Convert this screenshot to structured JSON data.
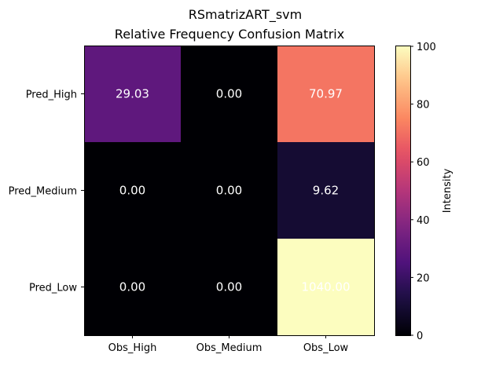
{
  "chart_data": {
    "type": "heatmap",
    "title": "RSmatrizART_svm",
    "subtitle": "Relative Frequency Confusion Matrix",
    "x_categories": [
      "Obs_High",
      "Obs_Medium",
      "Obs_Low"
    ],
    "y_categories": [
      "Pred_High",
      "Pred_Medium",
      "Pred_Low"
    ],
    "values": [
      [
        29.03,
        0.0,
        70.97
      ],
      [
        0.0,
        0.0,
        9.62
      ],
      [
        0.0,
        0.0,
        1040.0
      ]
    ],
    "cell_labels": [
      [
        "29.03",
        "0.00",
        "70.97"
      ],
      [
        "0.00",
        "0.00",
        "9.62"
      ],
      [
        "0.00",
        "0.00",
        "1040.00"
      ]
    ],
    "colormap": "magma",
    "clim": [
      0,
      100
    ],
    "colorbar": {
      "label": "Intensity",
      "ticks": [
        0,
        20,
        40,
        60,
        80,
        100
      ],
      "tick_labels": [
        "0",
        "20",
        "40",
        "60",
        "80",
        "100"
      ]
    },
    "grid": false,
    "legend": "none"
  }
}
